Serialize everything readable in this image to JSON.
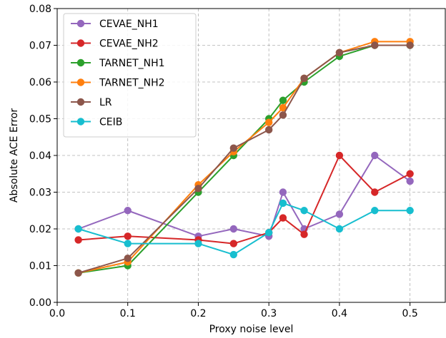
{
  "chart_data": {
    "type": "line",
    "xlabel": "Proxy noise level",
    "ylabel": "Absolute ACE Error",
    "xlim": [
      0.0,
      0.55
    ],
    "ylim": [
      0.0,
      0.08
    ],
    "xticks": [
      "0.0",
      "0.1",
      "0.2",
      "0.3",
      "0.4",
      "0.5"
    ],
    "yticks": [
      "0.00",
      "0.01",
      "0.02",
      "0.03",
      "0.04",
      "0.05",
      "0.06",
      "0.07",
      "0.08"
    ],
    "grid": true,
    "legend_position": "top-left",
    "x": [
      0.03,
      0.1,
      0.2,
      0.25,
      0.3,
      0.32,
      0.35,
      0.4,
      0.45,
      0.5
    ],
    "series": [
      {
        "name": "CEVAE_NH1",
        "color": "#9467bd",
        "values": [
          0.02,
          0.025,
          0.018,
          0.02,
          0.018,
          0.03,
          0.02,
          0.024,
          0.04,
          0.033
        ]
      },
      {
        "name": "CEVAE_NH2",
        "color": "#d62728",
        "values": [
          0.017,
          0.018,
          0.017,
          0.016,
          0.019,
          0.023,
          0.0185,
          0.04,
          0.03,
          0.035
        ]
      },
      {
        "name": "TARNET_NH1",
        "color": "#2ca02c",
        "values": [
          0.008,
          0.01,
          0.03,
          0.04,
          0.05,
          0.055,
          0.06,
          0.067,
          0.07,
          0.07
        ]
      },
      {
        "name": "TARNET_NH2",
        "color": "#ff7f0e",
        "values": [
          0.008,
          0.011,
          0.032,
          0.041,
          0.049,
          0.053,
          0.061,
          0.068,
          0.071,
          0.071
        ]
      },
      {
        "name": "LR",
        "color": "#8c564b",
        "values": [
          0.008,
          0.012,
          0.031,
          0.042,
          0.047,
          0.051,
          0.061,
          0.068,
          0.07,
          0.07
        ]
      },
      {
        "name": "CEIB",
        "color": "#17becf",
        "values": [
          0.02,
          0.016,
          0.016,
          0.013,
          0.019,
          0.027,
          0.025,
          0.02,
          0.025,
          0.025
        ]
      }
    ]
  }
}
